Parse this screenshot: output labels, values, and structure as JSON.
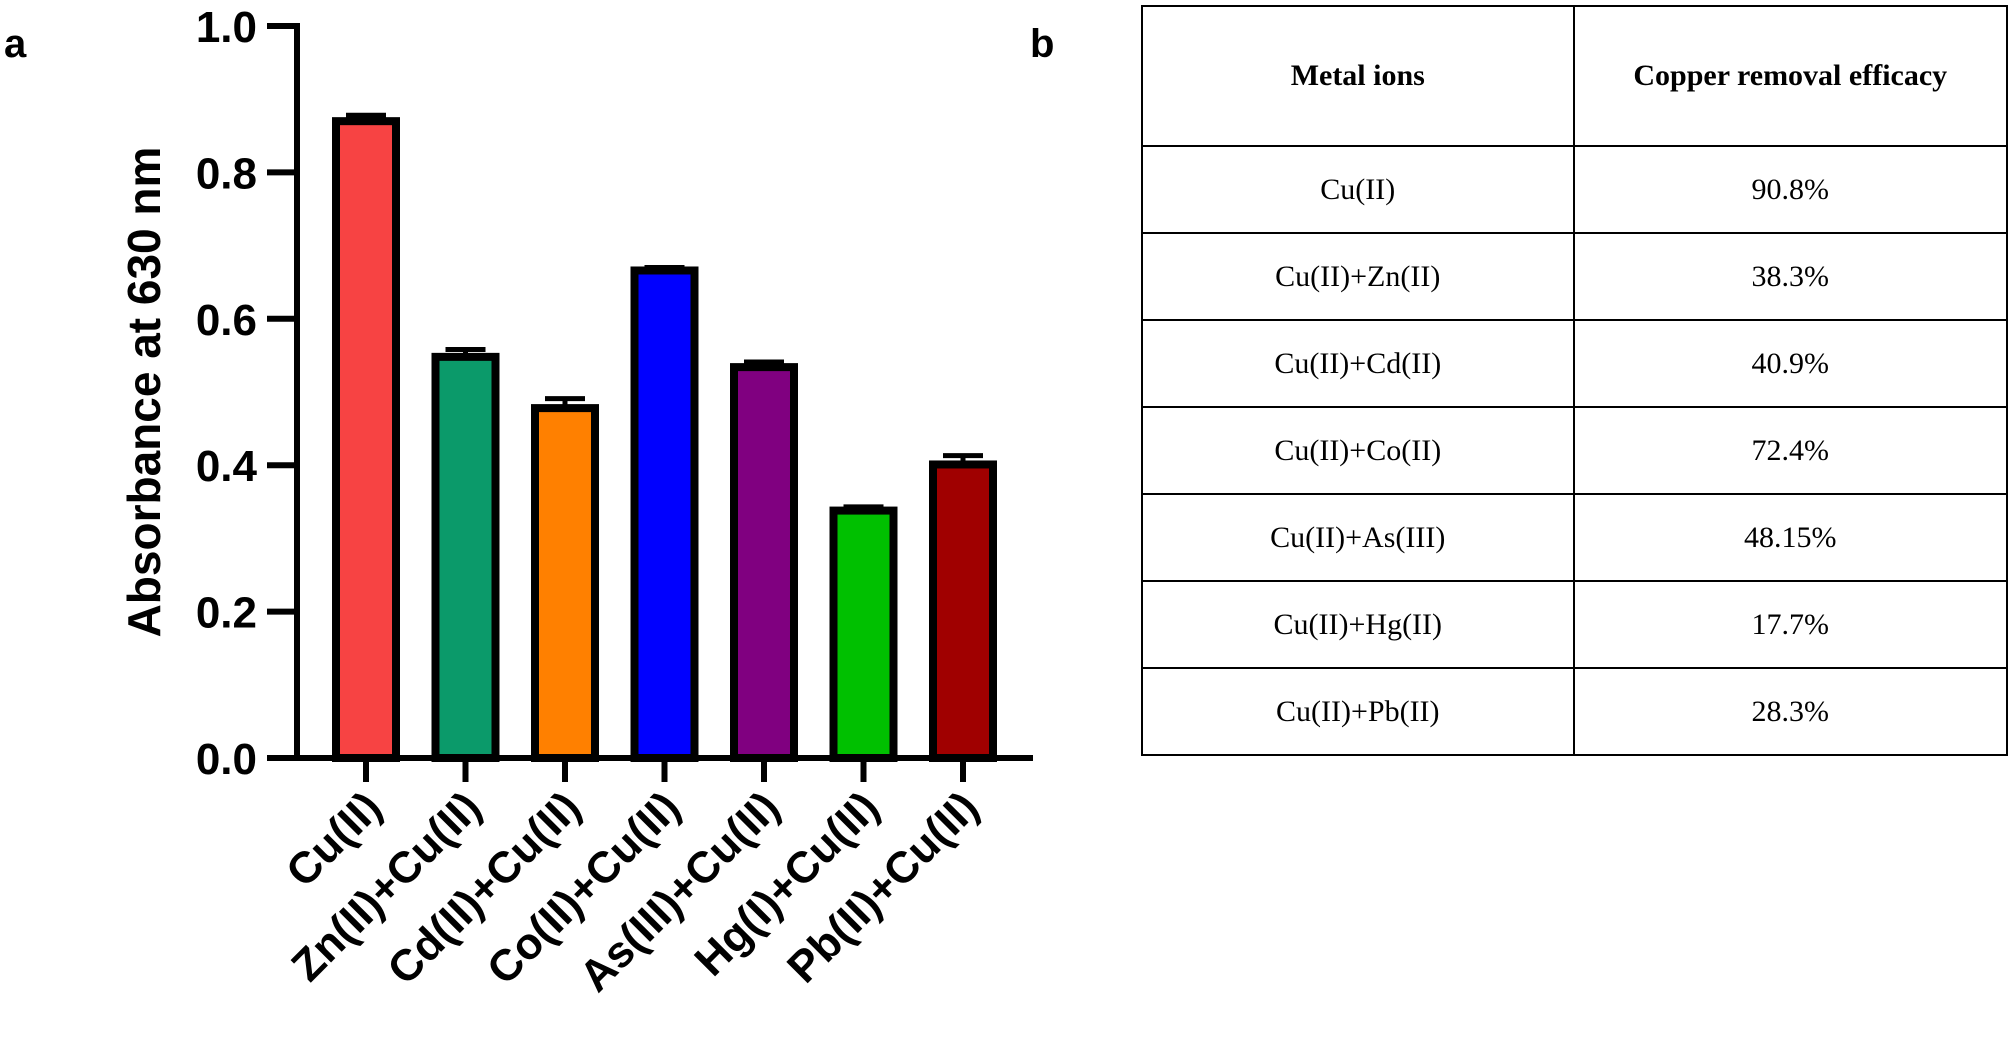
{
  "panel_labels": {
    "a": "a",
    "b": "b"
  },
  "chart_data": {
    "type": "bar",
    "title": "",
    "xlabel": "",
    "ylabel": "Absorbance at 630 nm",
    "ylim": [
      0,
      1.0
    ],
    "yticks": [
      "0.0",
      "0.2",
      "0.4",
      "0.6",
      "0.8",
      "1.0"
    ],
    "categories": [
      "Cu(II)",
      "Zn(II)+Cu(II)",
      "Cd(II)+Cu(II)",
      "Co(II)+Cu(II)",
      "As(III)+Cu(II)",
      "Hg(I)+Cu(II)",
      "Pb(II)+Cu(II)"
    ],
    "values": [
      0.87,
      0.548,
      0.478,
      0.666,
      0.534,
      0.338,
      0.401
    ],
    "errors": [
      0.008,
      0.01,
      0.013,
      0.004,
      0.007,
      0.005,
      0.012
    ],
    "colors": [
      "#f74343",
      "#0b9a6a",
      "#ff8000",
      "#0000ff",
      "#800080",
      "#00c000",
      "#a00000"
    ]
  },
  "table": {
    "headers": [
      "Metal ions",
      "Copper removal efficacy"
    ],
    "rows": [
      [
        "Cu(II)",
        "90.8%"
      ],
      [
        "Cu(II)+Zn(II)",
        "38.3%"
      ],
      [
        "Cu(II)+Cd(II)",
        "40.9%"
      ],
      [
        "Cu(II)+Co(II)",
        "72.4%"
      ],
      [
        "Cu(II)+As(III)",
        "48.15%"
      ],
      [
        "Cu(II)+Hg(II)",
        "17.7%"
      ],
      [
        "Cu(II)+Pb(II)",
        "28.3%"
      ]
    ]
  }
}
